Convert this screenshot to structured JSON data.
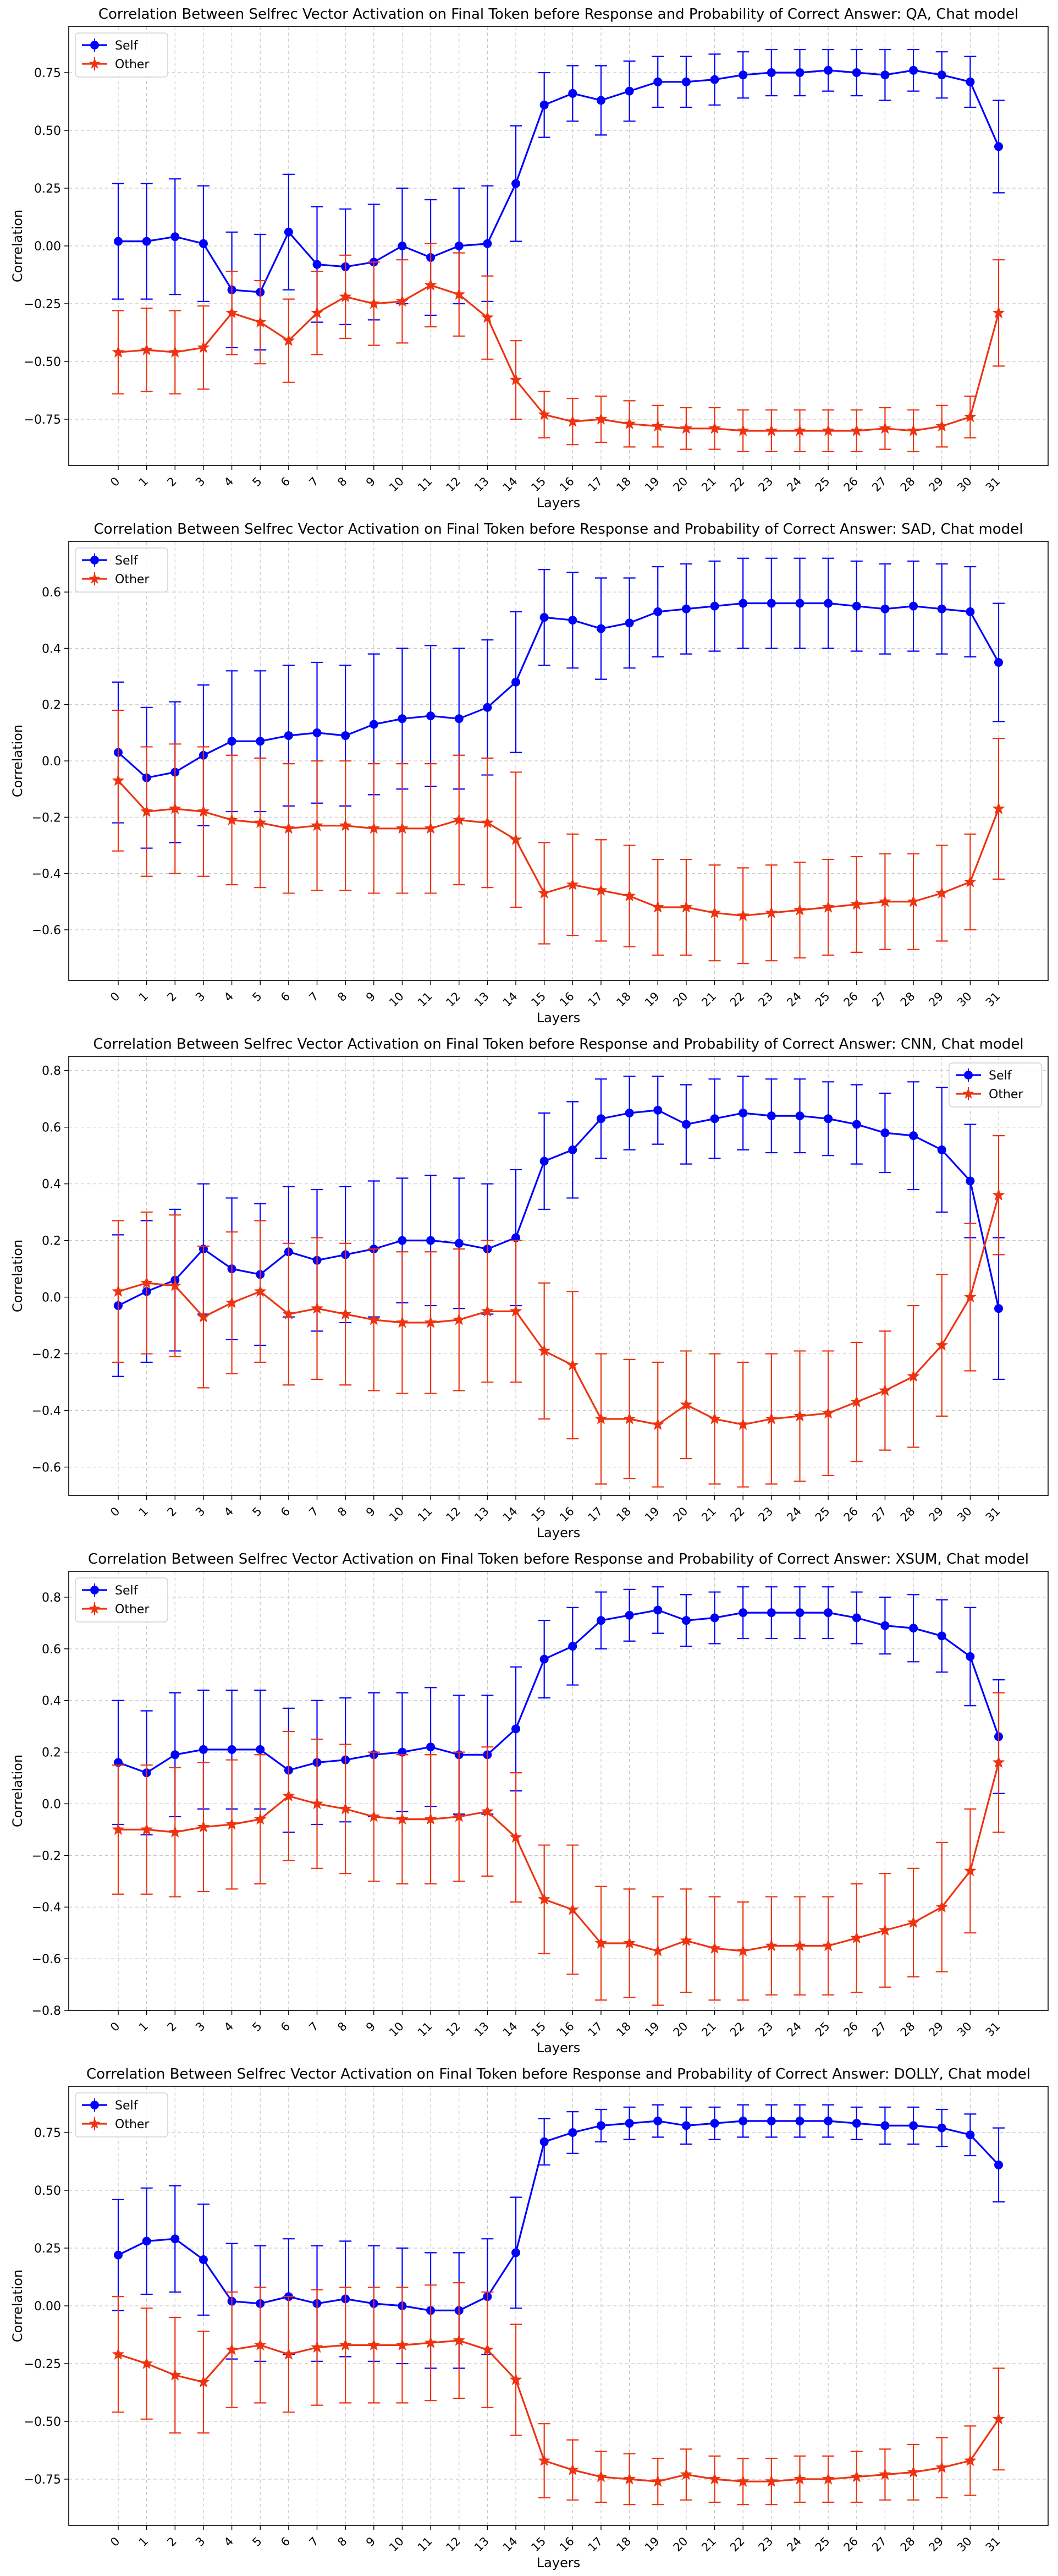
{
  "chart_data": [
    {
      "type": "line",
      "title": "Correlation Between Selfrec Vector Activation on Final Token before Response and Probability of Correct Answer: QA, Chat model",
      "xlabel": "Layers",
      "ylabel": "Correlation",
      "ylim": [
        -0.95,
        0.95
      ],
      "yticks": [
        -0.75,
        -0.5,
        -0.25,
        0.0,
        0.25,
        0.5,
        0.75
      ],
      "ytick_labels": [
        "−0.75",
        "−0.50",
        "−0.25",
        "0.00",
        "0.25",
        "0.50",
        "0.75"
      ],
      "grid": true,
      "legend_position": "top-left",
      "x": [
        0,
        1,
        2,
        3,
        4,
        5,
        6,
        7,
        8,
        9,
        10,
        11,
        12,
        13,
        14,
        15,
        16,
        17,
        18,
        19,
        20,
        21,
        22,
        23,
        24,
        25,
        26,
        27,
        28,
        29,
        30,
        31
      ],
      "series": [
        {
          "name": "Self",
          "color": "#0000ff",
          "marker": "circle",
          "values": [
            0.02,
            0.02,
            0.04,
            0.01,
            -0.19,
            -0.2,
            0.06,
            -0.08,
            -0.09,
            -0.07,
            0.0,
            -0.05,
            0.0,
            0.01,
            0.27,
            0.61,
            0.66,
            0.63,
            0.67,
            0.71,
            0.71,
            0.72,
            0.74,
            0.75,
            0.75,
            0.76,
            0.75,
            0.74,
            0.76,
            0.74,
            0.71,
            0.43
          ],
          "err": [
            0.25,
            0.25,
            0.25,
            0.25,
            0.25,
            0.25,
            0.25,
            0.25,
            0.25,
            0.25,
            0.25,
            0.25,
            0.25,
            0.25,
            0.25,
            0.14,
            0.12,
            0.15,
            0.13,
            0.11,
            0.11,
            0.11,
            0.1,
            0.1,
            0.1,
            0.09,
            0.1,
            0.11,
            0.09,
            0.1,
            0.11,
            0.2
          ]
        },
        {
          "name": "Other",
          "color": "#ee3311",
          "marker": "star",
          "values": [
            -0.46,
            -0.45,
            -0.46,
            -0.44,
            -0.29,
            -0.33,
            -0.41,
            -0.29,
            -0.22,
            -0.25,
            -0.24,
            -0.17,
            -0.21,
            -0.31,
            -0.58,
            -0.73,
            -0.76,
            -0.75,
            -0.77,
            -0.78,
            -0.79,
            -0.79,
            -0.8,
            -0.8,
            -0.8,
            -0.8,
            -0.8,
            -0.79,
            -0.8,
            -0.78,
            -0.74,
            -0.29
          ]
        },
        {
          "name": "Other-err",
          "values": [
            0.18,
            0.18,
            0.18,
            0.18,
            0.18,
            0.18,
            0.18,
            0.18,
            0.18,
            0.18,
            0.18,
            0.18,
            0.18,
            0.18,
            0.17,
            0.1,
            0.1,
            0.1,
            0.1,
            0.09,
            0.09,
            0.09,
            0.09,
            0.09,
            0.09,
            0.09,
            0.09,
            0.09,
            0.09,
            0.09,
            0.09,
            0.23
          ]
        }
      ]
    },
    {
      "type": "line",
      "title": "Correlation Between Selfrec Vector Activation on Final Token before Response and Probability of Correct Answer: SAD, Chat model",
      "xlabel": "Layers",
      "ylabel": "Correlation",
      "ylim": [
        -0.78,
        0.78
      ],
      "yticks": [
        -0.6,
        -0.4,
        -0.2,
        0.0,
        0.2,
        0.4,
        0.6
      ],
      "ytick_labels": [
        "−0.6",
        "−0.4",
        "−0.2",
        "0.0",
        "0.2",
        "0.4",
        "0.6"
      ],
      "grid": true,
      "legend_position": "top-left",
      "x": [
        0,
        1,
        2,
        3,
        4,
        5,
        6,
        7,
        8,
        9,
        10,
        11,
        12,
        13,
        14,
        15,
        16,
        17,
        18,
        19,
        20,
        21,
        22,
        23,
        24,
        25,
        26,
        27,
        28,
        29,
        30,
        31
      ],
      "series": [
        {
          "name": "Self",
          "color": "#0000ff",
          "marker": "circle",
          "values": [
            0.03,
            -0.06,
            -0.04,
            0.02,
            0.07,
            0.07,
            0.09,
            0.1,
            0.09,
            0.13,
            0.15,
            0.16,
            0.15,
            0.19,
            0.28,
            0.51,
            0.5,
            0.47,
            0.49,
            0.53,
            0.54,
            0.55,
            0.56,
            0.56,
            0.56,
            0.56,
            0.55,
            0.54,
            0.55,
            0.54,
            0.53,
            0.35
          ]
        },
        {
          "name": "Self-err",
          "values": [
            0.25,
            0.25,
            0.25,
            0.25,
            0.25,
            0.25,
            0.25,
            0.25,
            0.25,
            0.25,
            0.25,
            0.25,
            0.25,
            0.24,
            0.25,
            0.17,
            0.17,
            0.18,
            0.16,
            0.16,
            0.16,
            0.16,
            0.16,
            0.16,
            0.16,
            0.16,
            0.16,
            0.16,
            0.16,
            0.16,
            0.16,
            0.21
          ]
        },
        {
          "name": "Other",
          "color": "#ee3311",
          "marker": "star",
          "values": [
            -0.07,
            -0.18,
            -0.17,
            -0.18,
            -0.21,
            -0.22,
            -0.24,
            -0.23,
            -0.23,
            -0.24,
            -0.24,
            -0.24,
            -0.21,
            -0.22,
            -0.28,
            -0.47,
            -0.44,
            -0.46,
            -0.48,
            -0.52,
            -0.52,
            -0.54,
            -0.55,
            -0.54,
            -0.53,
            -0.52,
            -0.51,
            -0.5,
            -0.5,
            -0.47,
            -0.43,
            -0.17
          ]
        },
        {
          "name": "Other-err",
          "values": [
            0.25,
            0.23,
            0.23,
            0.23,
            0.23,
            0.23,
            0.23,
            0.23,
            0.23,
            0.23,
            0.23,
            0.23,
            0.23,
            0.23,
            0.24,
            0.18,
            0.18,
            0.18,
            0.18,
            0.17,
            0.17,
            0.17,
            0.17,
            0.17,
            0.17,
            0.17,
            0.17,
            0.17,
            0.17,
            0.17,
            0.17,
            0.25
          ]
        }
      ]
    },
    {
      "type": "line",
      "title": "Correlation Between Selfrec Vector Activation on Final Token before Response and Probability of Correct Answer: CNN, Chat model",
      "xlabel": "Layers",
      "ylabel": "Correlation",
      "ylim": [
        -0.7,
        0.85
      ],
      "yticks": [
        -0.6,
        -0.4,
        -0.2,
        0.0,
        0.2,
        0.4,
        0.6,
        0.8
      ],
      "ytick_labels": [
        "−0.6",
        "−0.4",
        "−0.2",
        "0.0",
        "0.2",
        "0.4",
        "0.6",
        "0.8"
      ],
      "grid": true,
      "legend_position": "top-right",
      "x": [
        0,
        1,
        2,
        3,
        4,
        5,
        6,
        7,
        8,
        9,
        10,
        11,
        12,
        13,
        14,
        15,
        16,
        17,
        18,
        19,
        20,
        21,
        22,
        23,
        24,
        25,
        26,
        27,
        28,
        29,
        30,
        31
      ],
      "series": [
        {
          "name": "Self",
          "color": "#0000ff",
          "marker": "circle",
          "values": [
            -0.03,
            0.02,
            0.06,
            0.17,
            0.1,
            0.08,
            0.16,
            0.13,
            0.15,
            0.17,
            0.2,
            0.2,
            0.19,
            0.17,
            0.21,
            0.48,
            0.52,
            0.63,
            0.65,
            0.66,
            0.61,
            0.63,
            0.65,
            0.64,
            0.64,
            0.63,
            0.61,
            0.58,
            0.57,
            0.52,
            0.41,
            -0.04
          ]
        },
        {
          "name": "Self-err",
          "values": [
            0.25,
            0.25,
            0.25,
            0.23,
            0.25,
            0.25,
            0.23,
            0.25,
            0.24,
            0.24,
            0.22,
            0.23,
            0.23,
            0.23,
            0.24,
            0.17,
            0.17,
            0.14,
            0.13,
            0.12,
            0.14,
            0.14,
            0.13,
            0.13,
            0.13,
            0.13,
            0.14,
            0.14,
            0.19,
            0.22,
            0.2,
            0.25
          ]
        },
        {
          "name": "Other",
          "color": "#ee3311",
          "marker": "star",
          "values": [
            0.02,
            0.05,
            0.04,
            -0.07,
            -0.02,
            0.02,
            -0.06,
            -0.04,
            -0.06,
            -0.08,
            -0.09,
            -0.09,
            -0.08,
            -0.05,
            -0.05,
            -0.19,
            -0.24,
            -0.43,
            -0.43,
            -0.45,
            -0.38,
            -0.43,
            -0.45,
            -0.43,
            -0.42,
            -0.41,
            -0.37,
            -0.33,
            -0.28,
            -0.17,
            0.0,
            0.36
          ]
        },
        {
          "name": "Other-err",
          "values": [
            0.25,
            0.25,
            0.25,
            0.25,
            0.25,
            0.25,
            0.25,
            0.25,
            0.25,
            0.25,
            0.25,
            0.25,
            0.25,
            0.25,
            0.25,
            0.24,
            0.26,
            0.23,
            0.21,
            0.22,
            0.19,
            0.23,
            0.22,
            0.23,
            0.23,
            0.22,
            0.21,
            0.21,
            0.25,
            0.25,
            0.26,
            0.21
          ]
        }
      ]
    },
    {
      "type": "line",
      "title": "Correlation Between Selfrec Vector Activation on Final Token before Response and Probability of Correct Answer: XSUM, Chat model",
      "xlabel": "Layers",
      "ylabel": "Correlation",
      "ylim": [
        -0.8,
        0.9
      ],
      "yticks": [
        -0.8,
        -0.6,
        -0.4,
        -0.2,
        0.0,
        0.2,
        0.4,
        0.6,
        0.8
      ],
      "ytick_labels": [
        "−0.8",
        "−0.6",
        "−0.4",
        "−0.2",
        "0.0",
        "0.2",
        "0.4",
        "0.6",
        "0.8"
      ],
      "grid": true,
      "legend_position": "top-left",
      "x": [
        0,
        1,
        2,
        3,
        4,
        5,
        6,
        7,
        8,
        9,
        10,
        11,
        12,
        13,
        14,
        15,
        16,
        17,
        18,
        19,
        20,
        21,
        22,
        23,
        24,
        25,
        26,
        27,
        28,
        29,
        30,
        31
      ],
      "series": [
        {
          "name": "Self",
          "color": "#0000ff",
          "marker": "circle",
          "values": [
            0.16,
            0.12,
            0.19,
            0.21,
            0.21,
            0.21,
            0.13,
            0.16,
            0.17,
            0.19,
            0.2,
            0.22,
            0.19,
            0.19,
            0.29,
            0.56,
            0.61,
            0.71,
            0.73,
            0.75,
            0.71,
            0.72,
            0.74,
            0.74,
            0.74,
            0.74,
            0.72,
            0.69,
            0.68,
            0.65,
            0.57,
            0.26
          ]
        },
        {
          "name": "Self-err",
          "values": [
            0.24,
            0.24,
            0.24,
            0.23,
            0.23,
            0.23,
            0.24,
            0.24,
            0.24,
            0.24,
            0.23,
            0.23,
            0.23,
            0.23,
            0.24,
            0.15,
            0.15,
            0.11,
            0.1,
            0.09,
            0.1,
            0.1,
            0.1,
            0.1,
            0.1,
            0.1,
            0.1,
            0.11,
            0.13,
            0.14,
            0.19,
            0.22
          ]
        },
        {
          "name": "Other",
          "color": "#ee3311",
          "marker": "star",
          "values": [
            -0.1,
            -0.1,
            -0.11,
            -0.09,
            -0.08,
            -0.06,
            0.03,
            0.0,
            -0.02,
            -0.05,
            -0.06,
            -0.06,
            -0.05,
            -0.03,
            -0.13,
            -0.37,
            -0.41,
            -0.54,
            -0.54,
            -0.57,
            -0.53,
            -0.56,
            -0.57,
            -0.55,
            -0.55,
            -0.55,
            -0.52,
            -0.49,
            -0.46,
            -0.4,
            -0.26,
            0.16
          ]
        },
        {
          "name": "Other-err",
          "values": [
            0.25,
            0.25,
            0.25,
            0.25,
            0.25,
            0.25,
            0.25,
            0.25,
            0.25,
            0.25,
            0.25,
            0.25,
            0.25,
            0.25,
            0.25,
            0.21,
            0.25,
            0.22,
            0.21,
            0.21,
            0.2,
            0.2,
            0.19,
            0.19,
            0.19,
            0.19,
            0.21,
            0.22,
            0.21,
            0.25,
            0.24,
            0.27
          ]
        }
      ]
    },
    {
      "type": "line",
      "title": "Correlation Between Selfrec Vector Activation on Final Token before Response and Probability of Correct Answer: DOLLY, Chat model",
      "xlabel": "Layers",
      "ylabel": "Correlation",
      "ylim": [
        -0.95,
        0.95
      ],
      "yticks": [
        -0.75,
        -0.5,
        -0.25,
        0.0,
        0.25,
        0.5,
        0.75
      ],
      "ytick_labels": [
        "−0.75",
        "−0.50",
        "−0.25",
        "0.00",
        "0.25",
        "0.50",
        "0.75"
      ],
      "grid": true,
      "legend_position": "top-left",
      "x": [
        0,
        1,
        2,
        3,
        4,
        5,
        6,
        7,
        8,
        9,
        10,
        11,
        12,
        13,
        14,
        15,
        16,
        17,
        18,
        19,
        20,
        21,
        22,
        23,
        24,
        25,
        26,
        27,
        28,
        29,
        30,
        31
      ],
      "series": [
        {
          "name": "Self",
          "color": "#0000ff",
          "marker": "circle",
          "values": [
            0.22,
            0.28,
            0.29,
            0.2,
            0.02,
            0.01,
            0.04,
            0.01,
            0.03,
            0.01,
            0.0,
            -0.02,
            -0.02,
            0.04,
            0.23,
            0.71,
            0.75,
            0.78,
            0.79,
            0.8,
            0.78,
            0.79,
            0.8,
            0.8,
            0.8,
            0.8,
            0.79,
            0.78,
            0.78,
            0.77,
            0.74,
            0.61
          ]
        },
        {
          "name": "Self-err",
          "values": [
            0.24,
            0.23,
            0.23,
            0.24,
            0.25,
            0.25,
            0.25,
            0.25,
            0.25,
            0.25,
            0.25,
            0.25,
            0.25,
            0.25,
            0.24,
            0.1,
            0.09,
            0.07,
            0.07,
            0.07,
            0.08,
            0.07,
            0.07,
            0.07,
            0.07,
            0.07,
            0.07,
            0.08,
            0.08,
            0.08,
            0.09,
            0.16
          ]
        },
        {
          "name": "Other",
          "color": "#ee3311",
          "marker": "star",
          "values": [
            -0.21,
            -0.25,
            -0.3,
            -0.33,
            -0.19,
            -0.17,
            -0.21,
            -0.18,
            -0.17,
            -0.17,
            -0.17,
            -0.16,
            -0.15,
            -0.19,
            -0.32,
            -0.67,
            -0.71,
            -0.74,
            -0.75,
            -0.76,
            -0.73,
            -0.75,
            -0.76,
            -0.76,
            -0.75,
            -0.75,
            -0.74,
            -0.73,
            -0.72,
            -0.7,
            -0.67,
            -0.49
          ]
        },
        {
          "name": "Other-err",
          "values": [
            0.25,
            0.24,
            0.25,
            0.22,
            0.25,
            0.25,
            0.25,
            0.25,
            0.25,
            0.25,
            0.25,
            0.25,
            0.25,
            0.25,
            0.24,
            0.16,
            0.13,
            0.11,
            0.11,
            0.1,
            0.11,
            0.1,
            0.1,
            0.1,
            0.1,
            0.1,
            0.11,
            0.11,
            0.12,
            0.13,
            0.15,
            0.22
          ]
        }
      ]
    }
  ]
}
